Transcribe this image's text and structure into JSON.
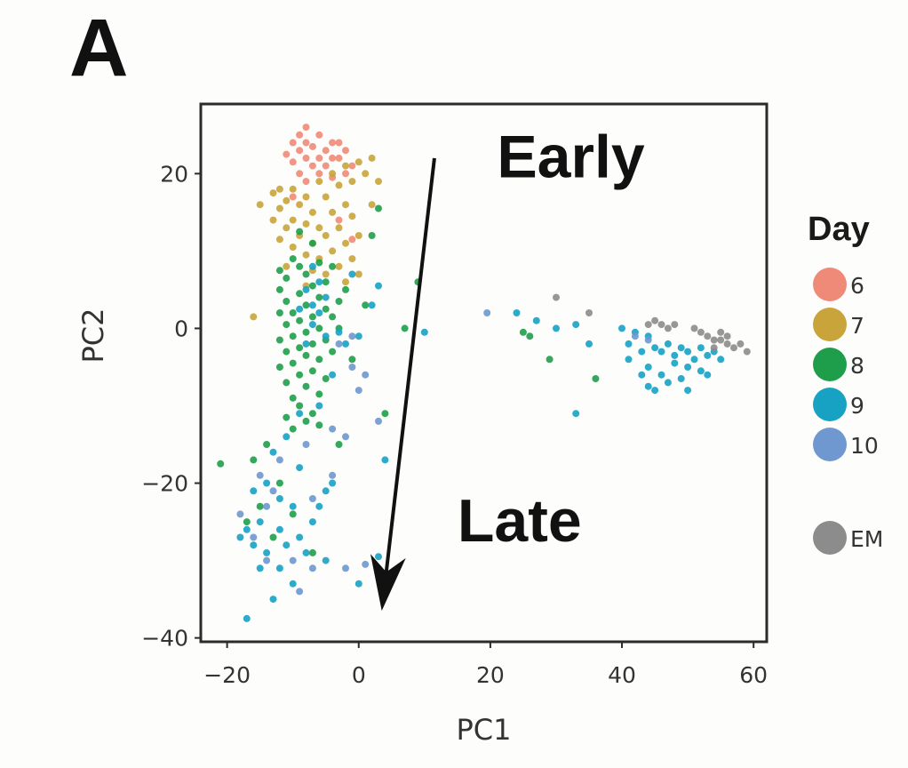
{
  "panel_label": "A",
  "chart_data": {
    "type": "scatter",
    "title": "",
    "xlabel": "PC1",
    "ylabel": "PC2",
    "xlim": [
      -24,
      62
    ],
    "ylim": [
      -40.5,
      29
    ],
    "xticks": [
      -20,
      0,
      20,
      40,
      60
    ],
    "yticks": [
      -40,
      -20,
      0,
      20
    ],
    "xtick_labels": [
      "−20",
      "0",
      "20",
      "40",
      "60"
    ],
    "ytick_labels": [
      "−40",
      "−20",
      "0",
      "20"
    ],
    "grid": false,
    "legend": {
      "title": "Day",
      "placement": "right",
      "entries": [
        {
          "label": "6",
          "color": "#F08A78"
        },
        {
          "label": "7",
          "color": "#C9A43A"
        },
        {
          "label": "8",
          "color": "#1E9E4A"
        },
        {
          "label": "9",
          "color": "#17A2C4"
        },
        {
          "label": "10",
          "color": "#6E98CF"
        },
        {
          "label": "EM",
          "color": "#8C8C8C"
        }
      ]
    },
    "annotations": [
      {
        "text": "Early",
        "x": 21,
        "y": 19.5
      },
      {
        "text": "Late",
        "x": 15,
        "y": -27.5
      }
    ],
    "arrow": {
      "from": [
        11.5,
        22
      ],
      "to": [
        3.5,
        -36.5
      ]
    },
    "series": [
      {
        "name": "6",
        "color": "#F08A78",
        "points": [
          [
            -8,
            26
          ],
          [
            -9,
            25
          ],
          [
            -6,
            25
          ],
          [
            -10,
            24
          ],
          [
            -8,
            24
          ],
          [
            -4,
            24
          ],
          [
            -3,
            24
          ],
          [
            -7,
            23.5
          ],
          [
            -5,
            23
          ],
          [
            -9,
            23
          ],
          [
            -2,
            23
          ],
          [
            -11,
            22.5
          ],
          [
            -6,
            22
          ],
          [
            -4,
            22
          ],
          [
            -8,
            22
          ],
          [
            -3,
            22
          ],
          [
            -10,
            21.5
          ],
          [
            -7,
            21
          ],
          [
            -5,
            21
          ],
          [
            -1,
            21
          ],
          [
            -9,
            20
          ],
          [
            -6,
            20
          ],
          [
            -2,
            20
          ],
          [
            -4,
            19.5
          ],
          [
            -10,
            17
          ],
          [
            -3,
            14
          ],
          [
            -1,
            11.5
          ],
          [
            -8,
            19
          ]
        ]
      },
      {
        "name": "7",
        "color": "#C9A43A",
        "points": [
          [
            2,
            22
          ],
          [
            0,
            21.5
          ],
          [
            -2,
            21
          ],
          [
            1,
            20
          ],
          [
            -4,
            20
          ],
          [
            3,
            19
          ],
          [
            -1,
            19
          ],
          [
            -6,
            19
          ],
          [
            -3,
            18.5
          ],
          [
            -12,
            18
          ],
          [
            -10,
            18
          ],
          [
            -13,
            17.5
          ],
          [
            -8,
            17
          ],
          [
            -11,
            16.5
          ],
          [
            -5,
            17
          ],
          [
            -2,
            16
          ],
          [
            2,
            16
          ],
          [
            -9,
            16
          ],
          [
            -12,
            15.5
          ],
          [
            -7,
            15
          ],
          [
            -4,
            15
          ],
          [
            -1,
            14.5
          ],
          [
            -10,
            14
          ],
          [
            -13,
            14
          ],
          [
            -8,
            13.5
          ],
          [
            -6,
            13
          ],
          [
            -11,
            13
          ],
          [
            -3,
            13
          ],
          [
            -9,
            12
          ],
          [
            -5,
            12
          ],
          [
            0,
            12
          ],
          [
            -12,
            11.5
          ],
          [
            -7,
            11
          ],
          [
            -2,
            11
          ],
          [
            -10,
            10.5
          ],
          [
            -4,
            10
          ],
          [
            -8,
            9.5
          ],
          [
            -6,
            9
          ],
          [
            -1,
            9
          ],
          [
            -3,
            8
          ],
          [
            -11,
            8
          ],
          [
            -7,
            7.5
          ],
          [
            -5,
            7
          ],
          [
            0,
            7
          ],
          [
            -2,
            6
          ],
          [
            -8,
            5.5
          ],
          [
            -16,
            1.5
          ],
          [
            -15,
            16
          ]
        ]
      },
      {
        "name": "8",
        "color": "#1E9E4A",
        "points": [
          [
            3,
            15.5
          ],
          [
            2,
            12
          ],
          [
            -9,
            12.5
          ],
          [
            -7,
            11
          ],
          [
            -10,
            9
          ],
          [
            -6,
            8.5
          ],
          [
            -9,
            8
          ],
          [
            -4,
            8
          ],
          [
            -12,
            7.5
          ],
          [
            -8,
            7
          ],
          [
            -11,
            6.5
          ],
          [
            -5,
            6
          ],
          [
            -7,
            5.5
          ],
          [
            -12,
            5
          ],
          [
            -2,
            5
          ],
          [
            -9,
            4.5
          ],
          [
            -6,
            4
          ],
          [
            -11,
            3.5
          ],
          [
            -3,
            3.5
          ],
          [
            -8,
            3
          ],
          [
            -10,
            2
          ],
          [
            -5,
            2.5
          ],
          [
            1,
            3
          ],
          [
            -12,
            2
          ],
          [
            -7,
            1.5
          ],
          [
            -4,
            1.5
          ],
          [
            -9,
            1
          ],
          [
            -11,
            0.5
          ],
          [
            -6,
            0
          ],
          [
            -8,
            -0.5
          ],
          [
            -3,
            0
          ],
          [
            -10,
            -1
          ],
          [
            -12,
            -1.5
          ],
          [
            -5,
            -1.5
          ],
          [
            -7,
            -2
          ],
          [
            -9,
            -2.5
          ],
          [
            -11,
            -3
          ],
          [
            -4,
            -3
          ],
          [
            -8,
            -3.5
          ],
          [
            -6,
            -4
          ],
          [
            -10,
            -4.5
          ],
          [
            -12,
            -5
          ],
          [
            -7,
            -5.5
          ],
          [
            -9,
            -6
          ],
          [
            -5,
            -6.5
          ],
          [
            -11,
            -7
          ],
          [
            -8,
            -7.5
          ],
          [
            -6,
            -8.5
          ],
          [
            -10,
            -9
          ],
          [
            -9,
            -10
          ],
          [
            -7,
            -11
          ],
          [
            -11,
            -11.5
          ],
          [
            -8,
            -12
          ],
          [
            -6,
            -12.5
          ],
          [
            -10,
            -13
          ],
          [
            7,
            0
          ],
          [
            9,
            6
          ],
          [
            -1,
            -4
          ],
          [
            -14,
            -15
          ],
          [
            -16,
            -17
          ],
          [
            -21,
            -17.5
          ],
          [
            -12,
            -20
          ],
          [
            -15,
            -23
          ],
          [
            -17,
            -25
          ],
          [
            -13,
            -27
          ],
          [
            -10,
            -24
          ],
          [
            -7,
            -29
          ],
          [
            -3,
            -15
          ],
          [
            4,
            -11
          ],
          [
            25,
            -0.5
          ],
          [
            26,
            -1
          ],
          [
            29,
            -4
          ],
          [
            36,
            -6.5
          ]
        ]
      },
      {
        "name": "9",
        "color": "#17A2C4",
        "points": [
          [
            -7,
            8
          ],
          [
            -6,
            6
          ],
          [
            -8,
            5
          ],
          [
            -5,
            4
          ],
          [
            -7,
            3
          ],
          [
            -6,
            2
          ],
          [
            -9,
            2.5
          ],
          [
            -7,
            0.5
          ],
          [
            -5,
            -1
          ],
          [
            -8,
            -2
          ],
          [
            -3,
            -0.5
          ],
          [
            -2,
            -2
          ],
          [
            0,
            -1
          ],
          [
            3,
            5.5
          ],
          [
            2,
            3
          ],
          [
            -1,
            7
          ],
          [
            -4,
            -6
          ],
          [
            -6,
            -10
          ],
          [
            -9,
            -11
          ],
          [
            -11,
            -14
          ],
          [
            -13,
            -16
          ],
          [
            -9,
            -18
          ],
          [
            -14,
            -20
          ],
          [
            -16,
            -21
          ],
          [
            -12,
            -22
          ],
          [
            -10,
            -23
          ],
          [
            -15,
            -25
          ],
          [
            -17,
            -26
          ],
          [
            -18,
            -27
          ],
          [
            -16,
            -28
          ],
          [
            -14,
            -29
          ],
          [
            -12,
            -26
          ],
          [
            -11,
            -28
          ],
          [
            -9,
            -27
          ],
          [
            -7,
            -25
          ],
          [
            -5,
            -21
          ],
          [
            -4,
            -20
          ],
          [
            -6,
            -23
          ],
          [
            -8,
            -29
          ],
          [
            -15,
            -31
          ],
          [
            -12,
            -31
          ],
          [
            -10,
            -33
          ],
          [
            -13,
            -35
          ],
          [
            -17,
            -37.5
          ],
          [
            -5,
            -30
          ],
          [
            0,
            -33
          ],
          [
            3,
            -29.5
          ],
          [
            4,
            -17
          ],
          [
            10,
            -0.5
          ],
          [
            24,
            2
          ],
          [
            27,
            1
          ],
          [
            30,
            0
          ],
          [
            33,
            0.5
          ],
          [
            35,
            -2
          ],
          [
            33,
            -11
          ],
          [
            40,
            0
          ],
          [
            42,
            -0.5
          ],
          [
            41,
            -2
          ],
          [
            43,
            -3
          ],
          [
            44,
            -1
          ],
          [
            45,
            -2.5
          ],
          [
            46,
            -3
          ],
          [
            47,
            -2
          ],
          [
            48,
            -3.5
          ],
          [
            49,
            -2.5
          ],
          [
            50,
            -3
          ],
          [
            51,
            -4
          ],
          [
            52,
            -2.5
          ],
          [
            53,
            -3.5
          ],
          [
            54,
            -3
          ],
          [
            44,
            -5
          ],
          [
            46,
            -6
          ],
          [
            48,
            -4.5
          ],
          [
            50,
            -5
          ],
          [
            52,
            -5.5
          ],
          [
            47,
            -7
          ],
          [
            45,
            -8
          ],
          [
            49,
            -6.5
          ],
          [
            53,
            -6
          ],
          [
            41,
            -4
          ],
          [
            43,
            -6
          ],
          [
            44,
            -7.5
          ],
          [
            50,
            -8
          ],
          [
            55,
            -4
          ]
        ]
      },
      {
        "name": "10",
        "color": "#6E98CF",
        "points": [
          [
            -3,
            -2
          ],
          [
            -1,
            -1
          ],
          [
            0,
            -8
          ],
          [
            -4,
            -13
          ],
          [
            -2,
            -14
          ],
          [
            3,
            -12
          ],
          [
            -8,
            -15
          ],
          [
            -15,
            -19
          ],
          [
            -12,
            -17
          ],
          [
            -4,
            -19
          ],
          [
            -13,
            -21
          ],
          [
            -18,
            -24
          ],
          [
            -16,
            -27
          ],
          [
            -14,
            -23
          ],
          [
            -7,
            -22
          ],
          [
            -10,
            -30
          ],
          [
            -2,
            -31
          ],
          [
            1,
            -30.5
          ],
          [
            3,
            -31
          ],
          [
            -9,
            -34
          ],
          [
            -14,
            -30
          ],
          [
            -7,
            -31
          ],
          [
            19.5,
            2
          ],
          [
            42,
            -1
          ],
          [
            44,
            -1.5
          ],
          [
            -1,
            -5
          ],
          [
            1,
            -6
          ]
        ]
      },
      {
        "name": "EM",
        "color": "#8C8C8C",
        "points": [
          [
            30,
            4
          ],
          [
            35,
            2
          ],
          [
            44,
            0.5
          ],
          [
            46,
            0.5
          ],
          [
            47,
            0
          ],
          [
            48,
            0.5
          ],
          [
            51,
            0
          ],
          [
            52,
            -0.5
          ],
          [
            53,
            -1
          ],
          [
            54,
            -1.5
          ],
          [
            55,
            -1.5
          ],
          [
            56,
            -2
          ],
          [
            57,
            -2.5
          ],
          [
            58,
            -2
          ],
          [
            59,
            -3
          ],
          [
            55,
            -0.5
          ],
          [
            56,
            -1
          ],
          [
            54,
            -2.5
          ],
          [
            45,
            1
          ]
        ]
      }
    ]
  }
}
